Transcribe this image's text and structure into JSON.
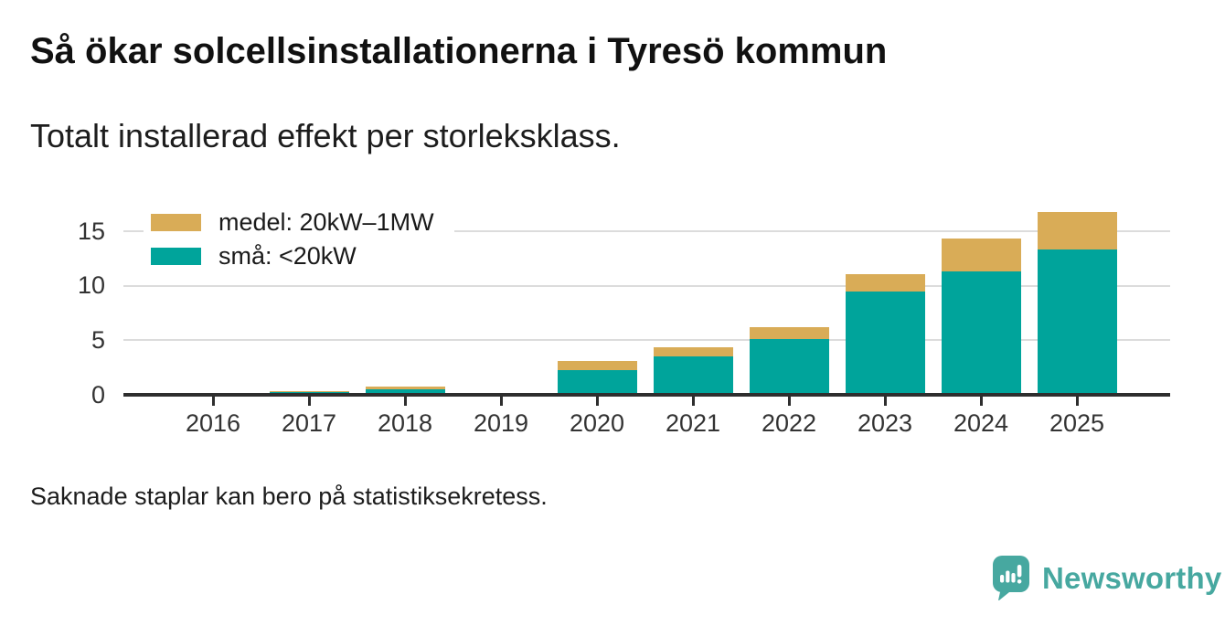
{
  "chart_data": {
    "type": "bar",
    "stacked": true,
    "title": "Så ökar solcellsinstallationerna i Tyresö kommun",
    "subtitle": "Totalt installerad effekt per storleksklass.",
    "note": "Saknade staplar kan bero på statistiksekretess.",
    "categories": [
      "2016",
      "2017",
      "2018",
      "2019",
      "2020",
      "2021",
      "2022",
      "2023",
      "2024",
      "2025"
    ],
    "series": [
      {
        "name": "små: <20kW",
        "color": "#00a49b",
        "values": [
          0.05,
          0.3,
          0.5,
          null,
          2.3,
          3.5,
          5.1,
          9.5,
          11.3,
          13.3
        ]
      },
      {
        "name": "medel: 20kW–1MW",
        "color": "#d9ac57",
        "values": [
          0.15,
          0.05,
          0.25,
          null,
          0.8,
          0.9,
          1.1,
          1.6,
          3.0,
          3.5
        ]
      }
    ],
    "y_ticks": [
      0,
      5,
      10,
      15
    ],
    "ylim": [
      0,
      18
    ],
    "grid": "horizontal",
    "legend_position": "top-left-inside",
    "missing_categories": [
      "2019"
    ]
  },
  "colors": {
    "axis_line": "#2e2e2e",
    "gridline": "#dcdcdc",
    "tick_label": "#333333",
    "text": "#1a1a1a"
  },
  "logo": {
    "brand": "Newsworthy",
    "color": "#47a8a0"
  }
}
